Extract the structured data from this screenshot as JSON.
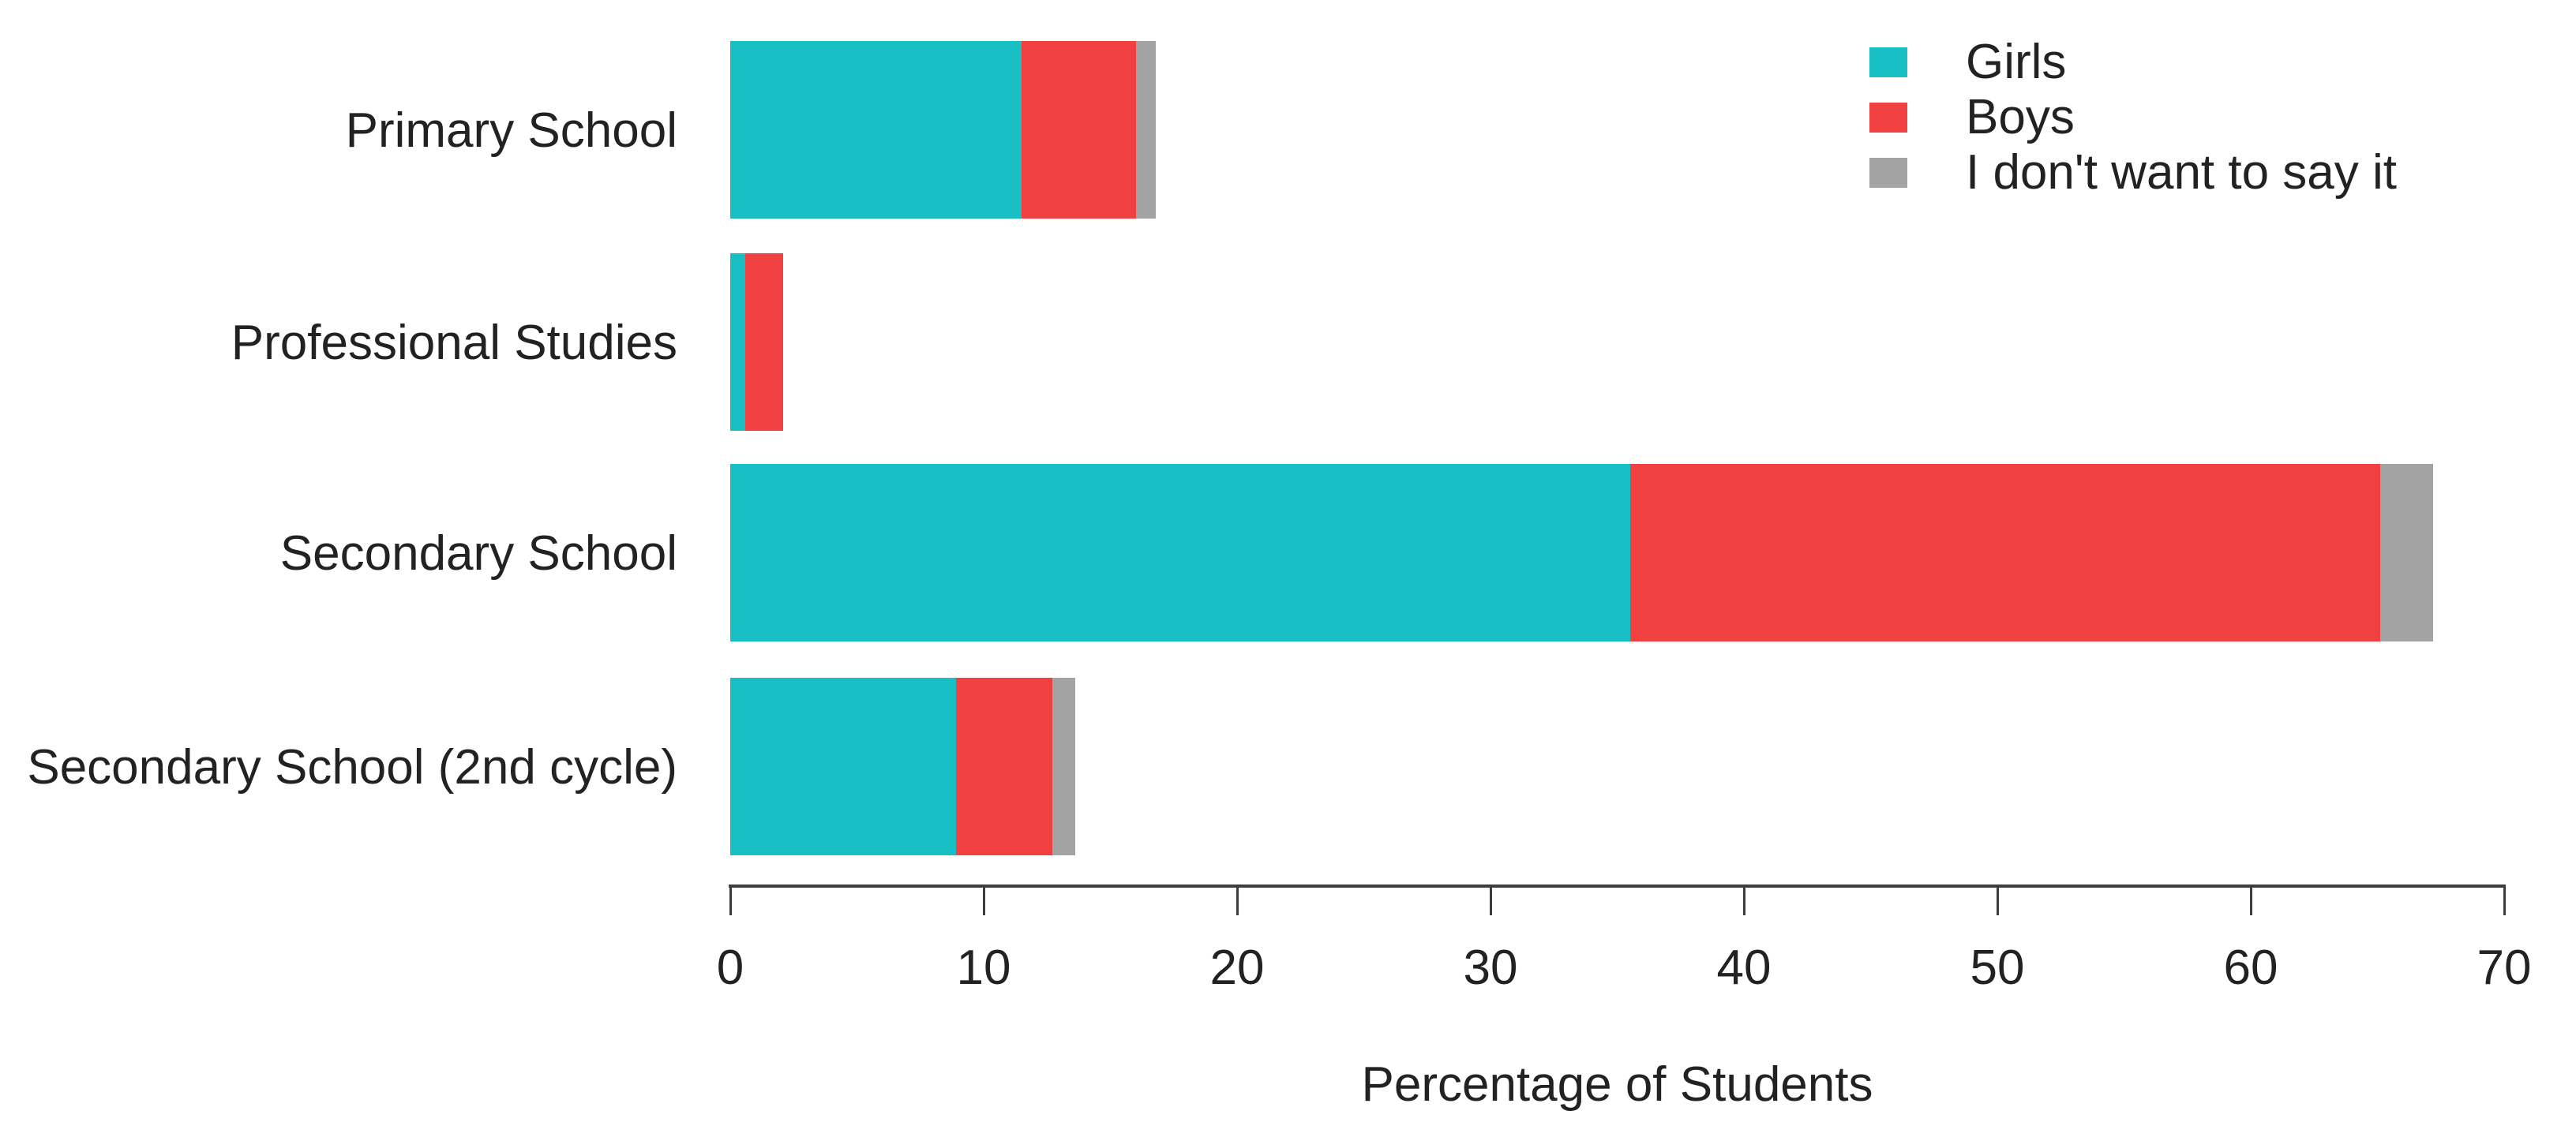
{
  "chart_data": {
    "type": "bar",
    "orientation": "horizontal",
    "stacked": true,
    "title": "",
    "xlabel": "Percentage of Students",
    "ylabel": "",
    "xlim": [
      0,
      70
    ],
    "xticks": [
      0,
      10,
      20,
      30,
      40,
      50,
      60,
      70
    ],
    "grid": false,
    "legend_position": "top-right",
    "categories": [
      "Primary School",
      "Professional Studies",
      "Secondary School",
      "Secondary School (2nd cycle)"
    ],
    "series": [
      {
        "name": "Girls",
        "color": "#17BEC3",
        "values": [
          11.5,
          0.6,
          35.5,
          8.9
        ]
      },
      {
        "name": "Boys",
        "color": "#F04040",
        "values": [
          4.5,
          1.5,
          29.6,
          3.8
        ]
      },
      {
        "name": "I don't want to say it",
        "color": "#A3A3A3",
        "values": [
          0.8,
          0.0,
          2.1,
          0.9
        ]
      }
    ],
    "category_totals": [
      16.8,
      2.1,
      67.2,
      13.6
    ],
    "axis_color": "#3d3d3d",
    "text_color": "#222222",
    "background_color": "#ffffff"
  }
}
